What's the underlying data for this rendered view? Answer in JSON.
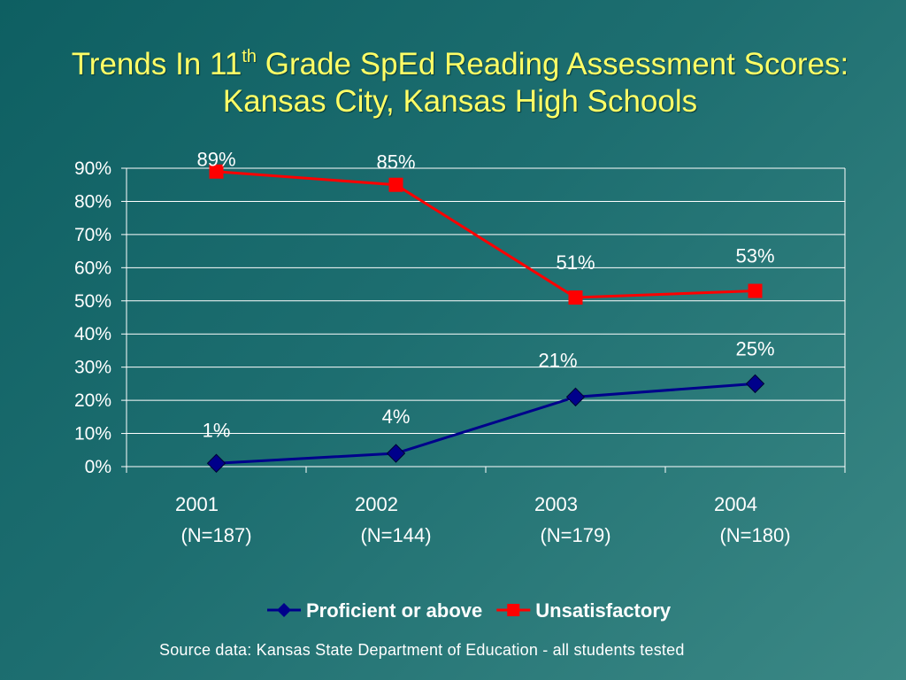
{
  "title": {
    "line1_prefix": "Trends In 11",
    "line1_sup": "th",
    "line1_suffix": " Grade SpEd Reading Assessment Scores:",
    "line2": "Kansas City, Kansas High Schools"
  },
  "source": "Source data: Kansas State Department of Education - all students tested",
  "colors": {
    "title": "#ffff66",
    "text": "#ffffff",
    "proficient": "#00008b",
    "unsatisfactory": "#ff0000",
    "grid": "#ffffff"
  },
  "chart_data": {
    "type": "line",
    "categories": [
      "2001",
      "2002",
      "2003",
      "2004"
    ],
    "category_sublabels": [
      "(N=187)",
      "(N=144)",
      "(N=179)",
      "(N=180)"
    ],
    "ylim": [
      0,
      90
    ],
    "yticks": [
      0,
      10,
      20,
      30,
      40,
      50,
      60,
      70,
      80,
      90
    ],
    "ytick_labels": [
      "0%",
      "10%",
      "20%",
      "30%",
      "40%",
      "50%",
      "60%",
      "70%",
      "80%",
      "90%"
    ],
    "grid": true,
    "legend_placement": "bottom",
    "series": [
      {
        "name": "Proficient or above",
        "values": [
          1,
          4,
          21,
          25
        ],
        "labels": [
          "1%",
          "4%",
          "21%",
          "25%"
        ],
        "marker": "diamond",
        "color": "#00008b"
      },
      {
        "name": "Unsatisfactory",
        "values": [
          89,
          85,
          51,
          53
        ],
        "labels": [
          "89%",
          "85%",
          "51%",
          "53%"
        ],
        "marker": "square",
        "color": "#ff0000"
      }
    ]
  }
}
